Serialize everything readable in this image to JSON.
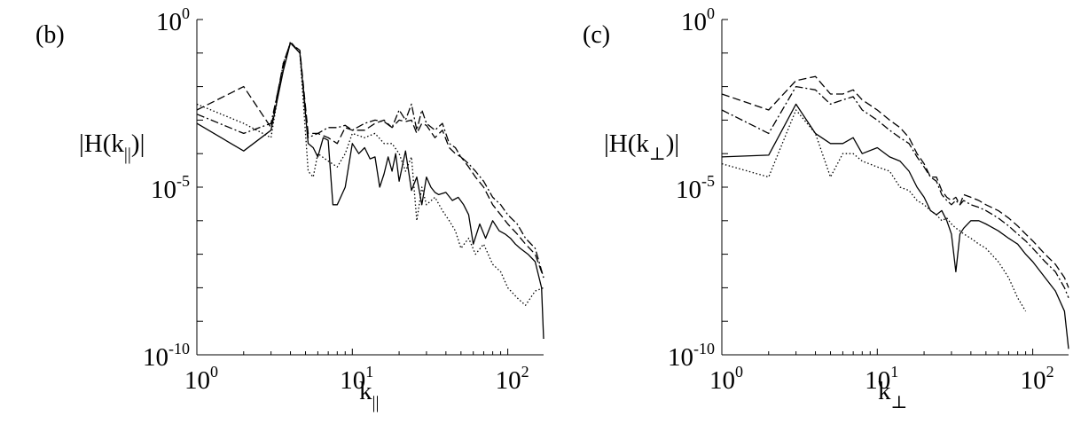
{
  "chart_data": [
    {
      "type": "line",
      "panel_label": "(b)",
      "xscale": "log",
      "yscale": "log",
      "xlim": [
        1,
        170
      ],
      "ylim": [
        1e-10,
        1
      ],
      "xlabel": {
        "base": "k",
        "sub": "||"
      },
      "ylabel": {
        "pre": "|H(k",
        "sub": "||",
        "post": ")|"
      },
      "xticks": [
        {
          "base": "10",
          "exp": "0"
        },
        {
          "base": "10",
          "exp": "1"
        },
        {
          "base": "10",
          "exp": "2"
        }
      ],
      "yticks": [
        {
          "base": "10",
          "exp": "0"
        },
        {
          "base": "10",
          "exp": "-5"
        },
        {
          "base": "10",
          "exp": "-10"
        }
      ],
      "series": [
        {
          "style": "solid",
          "x": [
            1,
            2,
            3,
            3.6,
            4,
            4.6,
            5.2,
            5.6,
            6,
            6.5,
            7,
            7.5,
            8,
            9,
            10,
            11,
            12,
            13,
            14,
            15,
            16,
            17,
            18,
            19,
            20,
            22,
            24,
            26,
            28,
            30,
            32,
            34,
            36,
            40,
            44,
            48,
            52,
            56,
            60,
            66,
            72,
            80,
            88,
            96,
            104,
            112,
            120,
            135,
            150,
            165,
            170
          ],
          "y": [
            0.0008,
            0.00012,
            0.0005,
            0.03,
            0.2,
            0.1,
            0.0002,
            0.00015,
            8e-05,
            0.0003,
            0.00025,
            3e-06,
            3e-06,
            1e-05,
            0.0002,
            0.0001,
            0.00015,
            7e-05,
            8e-05,
            1e-05,
            2.5e-05,
            8e-05,
            3e-05,
            0.0001,
            1.5e-05,
            0.00012,
            8e-06,
            2e-05,
            3e-06,
            2e-05,
            1e-05,
            7e-06,
            6e-06,
            7e-06,
            4e-06,
            5e-06,
            3e-06,
            1.5e-06,
            2e-07,
            8e-07,
            3e-07,
            1e-06,
            5e-07,
            4e-07,
            3e-07,
            2e-07,
            1.5e-07,
            1e-07,
            6e-08,
            1e-08,
            3e-10
          ]
        },
        {
          "style": "dashed",
          "x": [
            1,
            2,
            3,
            3.6,
            4,
            4.6,
            5.2,
            6,
            7,
            8,
            9,
            10,
            12,
            14,
            16,
            18,
            20,
            22,
            24,
            26,
            28,
            30,
            34,
            38,
            42,
            46,
            50,
            56,
            62,
            70,
            80,
            90,
            100,
            115,
            130,
            150,
            170
          ],
          "y": [
            0.002,
            0.01,
            0.0006,
            0.05,
            0.2,
            0.12,
            0.0004,
            0.0004,
            0.0003,
            0.0002,
            0.0006,
            0.0005,
            0.0005,
            0.0008,
            0.001,
            0.0006,
            0.001,
            0.0009,
            0.001,
            0.0004,
            0.0008,
            0.0007,
            0.0003,
            0.0005,
            0.00015,
            0.0001,
            8e-05,
            4e-05,
            2e-05,
            1e-05,
            3e-06,
            1.5e-06,
            8e-07,
            4e-07,
            2e-07,
            1e-07,
            2e-08
          ]
        },
        {
          "style": "dashdot",
          "x": [
            1,
            2,
            3,
            3.6,
            4,
            4.6,
            5.2,
            6,
            7,
            8,
            9,
            10,
            12,
            14,
            16,
            18,
            20,
            22,
            24,
            26,
            28,
            30,
            34,
            38,
            42,
            46,
            50,
            56,
            62,
            70,
            80,
            90,
            100,
            115,
            130,
            150,
            170
          ],
          "y": [
            0.0015,
            0.0004,
            0.0008,
            0.04,
            0.22,
            0.1,
            0.0003,
            0.0004,
            0.0006,
            0.0006,
            0.0007,
            0.0005,
            0.0008,
            0.001,
            0.0009,
            0.0006,
            0.002,
            0.001,
            0.003,
            0.0005,
            0.002,
            0.0008,
            0.0005,
            0.0008,
            0.0002,
            0.00015,
            8e-05,
            5e-05,
            3e-05,
            1.5e-05,
            5e-06,
            3e-06,
            1.5e-06,
            8e-07,
            3e-07,
            1.5e-07,
            2e-08
          ]
        },
        {
          "style": "dotted",
          "x": [
            1,
            2,
            3,
            3.6,
            4,
            4.6,
            5.2,
            5.6,
            6,
            7,
            8,
            9,
            10,
            12,
            14,
            16,
            18,
            20,
            22,
            24,
            26,
            28,
            30,
            34,
            38,
            42,
            46,
            50,
            56,
            62,
            70,
            80,
            90,
            100,
            115,
            130,
            150,
            170
          ],
          "y": [
            0.003,
            0.0008,
            0.0003,
            0.05,
            0.2,
            0.1,
            3e-05,
            2e-05,
            0.0001,
            6e-05,
            4e-05,
            0.0001,
            0.0004,
            0.0003,
            0.0004,
            0.0002,
            0.0002,
            0.0001,
            3e-05,
            8e-05,
            1e-06,
            1e-05,
            3e-06,
            5e-06,
            2e-06,
            1e-06,
            5e-07,
            1.5e-07,
            3e-07,
            1e-07,
            2e-07,
            5e-08,
            3e-08,
            1e-08,
            5e-09,
            3e-09,
            8e-09,
            1e-08
          ]
        }
      ]
    },
    {
      "type": "line",
      "panel_label": "(c)",
      "xscale": "log",
      "yscale": "log",
      "xlim": [
        1,
        170
      ],
      "ylim": [
        1e-10,
        1
      ],
      "xlabel": {
        "base": "k",
        "sub": "⊥"
      },
      "ylabel": {
        "pre": "|H(k",
        "sub": "⊥",
        "post": ")|"
      },
      "xticks": [
        {
          "base": "10",
          "exp": "0"
        },
        {
          "base": "10",
          "exp": "1"
        },
        {
          "base": "10",
          "exp": "2"
        }
      ],
      "yticks": [
        {
          "base": "10",
          "exp": "0"
        },
        {
          "base": "10",
          "exp": "-5"
        },
        {
          "base": "10",
          "exp": "-10"
        }
      ],
      "series": [
        {
          "style": "solid",
          "x": [
            1,
            2,
            3,
            4,
            5,
            6,
            7,
            8,
            10,
            12,
            14,
            16,
            18,
            20,
            22,
            24,
            26,
            28,
            30,
            32,
            34,
            36,
            40,
            45,
            50,
            60,
            70,
            80,
            90,
            100,
            120,
            140,
            160,
            170
          ],
          "y": [
            8e-05,
            9e-05,
            0.003,
            0.0004,
            0.0002,
            0.0002,
            0.0003,
            0.0001,
            0.00015,
            8e-05,
            6e-05,
            3e-05,
            1e-05,
            5e-06,
            2e-06,
            1.5e-06,
            2e-06,
            1e-06,
            4e-07,
            3e-08,
            4e-07,
            6e-07,
            1e-06,
            1e-06,
            8e-07,
            5e-07,
            3e-07,
            2e-07,
            1e-07,
            6e-08,
            2e-08,
            8e-09,
            2e-09,
            1.5e-10
          ]
        },
        {
          "style": "dashed",
          "x": [
            1,
            2,
            3,
            4,
            5,
            6,
            7,
            8,
            10,
            12,
            14,
            16,
            18,
            20,
            22,
            24,
            26,
            28,
            30,
            32,
            34,
            36,
            40,
            45,
            50,
            60,
            70,
            80,
            90,
            100,
            120,
            140,
            160,
            170
          ],
          "y": [
            0.006,
            0.002,
            0.015,
            0.02,
            0.006,
            0.006,
            0.008,
            0.004,
            0.002,
            0.001,
            0.0006,
            0.0003,
            0.0001,
            5e-05,
            2e-05,
            2e-05,
            8e-06,
            5e-06,
            4e-06,
            5e-06,
            3e-06,
            6e-06,
            5e-06,
            4e-06,
            3e-06,
            2e-06,
            1.2e-06,
            7e-07,
            4e-07,
            2.5e-07,
            1e-07,
            5e-08,
            2e-08,
            1e-08
          ]
        },
        {
          "style": "dashdot",
          "x": [
            1,
            2,
            3,
            4,
            5,
            6,
            7,
            8,
            10,
            12,
            14,
            16,
            18,
            20,
            22,
            24,
            26,
            28,
            30,
            32,
            34,
            36,
            40,
            45,
            50,
            60,
            70,
            80,
            90,
            100,
            120,
            140,
            160,
            170
          ],
          "y": [
            0.002,
            0.0004,
            0.01,
            0.008,
            0.003,
            0.004,
            0.005,
            0.002,
            0.001,
            0.0005,
            0.0003,
            0.0002,
            8e-05,
            4e-05,
            2e-05,
            1.5e-05,
            6e-06,
            4e-06,
            3e-06,
            4e-06,
            3e-06,
            4e-06,
            3e-06,
            2.5e-06,
            2e-06,
            1.2e-06,
            7e-07,
            4e-07,
            2.5e-07,
            1.5e-07,
            6e-08,
            3e-08,
            1e-08,
            5e-09
          ]
        },
        {
          "style": "dotted",
          "x": [
            1,
            2,
            3,
            4,
            5,
            6,
            7,
            8,
            10,
            12,
            14,
            16,
            18,
            20,
            22,
            24,
            26,
            28,
            30,
            32,
            34,
            36,
            40,
            45,
            50,
            60,
            70,
            80,
            90
          ],
          "y": [
            5e-05,
            2e-05,
            0.002,
            0.0004,
            2e-05,
            0.0001,
            0.0001,
            6e-05,
            4e-05,
            3e-05,
            1e-05,
            8e-06,
            4e-06,
            3e-06,
            2e-06,
            1.5e-06,
            1e-06,
            1.2e-06,
            8e-07,
            6e-07,
            5e-07,
            4e-07,
            3e-07,
            2e-07,
            1.5e-07,
            6e-08,
            2e-08,
            5e-09,
            2e-09
          ]
        }
      ]
    }
  ]
}
